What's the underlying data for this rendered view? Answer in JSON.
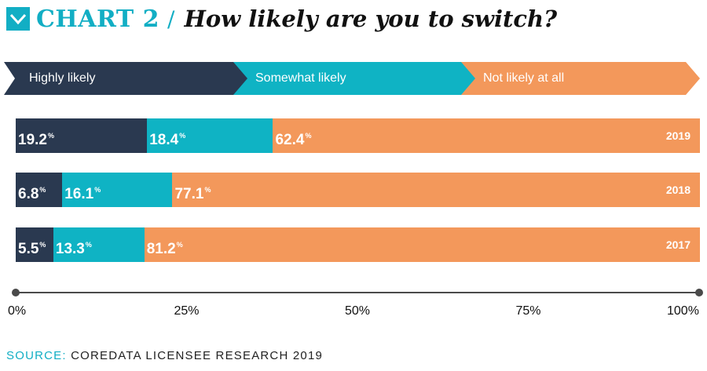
{
  "header": {
    "chart_label": "CHART 2",
    "slash": "/",
    "title": "How likely are you to switch?"
  },
  "colors": {
    "highly": "#2a3950",
    "somewhat": "#0fb3c4",
    "not": "#f3985b",
    "accent": "#12aec4"
  },
  "icons": {
    "header_icon": "check-chevron-icon"
  },
  "chart_data": {
    "type": "bar",
    "orientation": "horizontal",
    "stacked": true,
    "title": "How likely are you to switch?",
    "categories": [
      "2019",
      "2018",
      "2017"
    ],
    "series": [
      {
        "name": "Highly likely",
        "values": [
          19.2,
          6.8,
          5.5
        ]
      },
      {
        "name": "Somewhat likely",
        "values": [
          18.4,
          16.1,
          13.3
        ]
      },
      {
        "name": "Not likely at all",
        "values": [
          62.4,
          77.1,
          81.2
        ]
      }
    ],
    "xlim": [
      0,
      100
    ],
    "x_ticks": [
      "0%",
      "25%",
      "50%",
      "75%",
      "100%"
    ],
    "value_suffix": "%",
    "legend_position": "top"
  },
  "source": {
    "label": "SOURCE:",
    "text": "COREDATA LICENSEE RESEARCH 2019"
  }
}
